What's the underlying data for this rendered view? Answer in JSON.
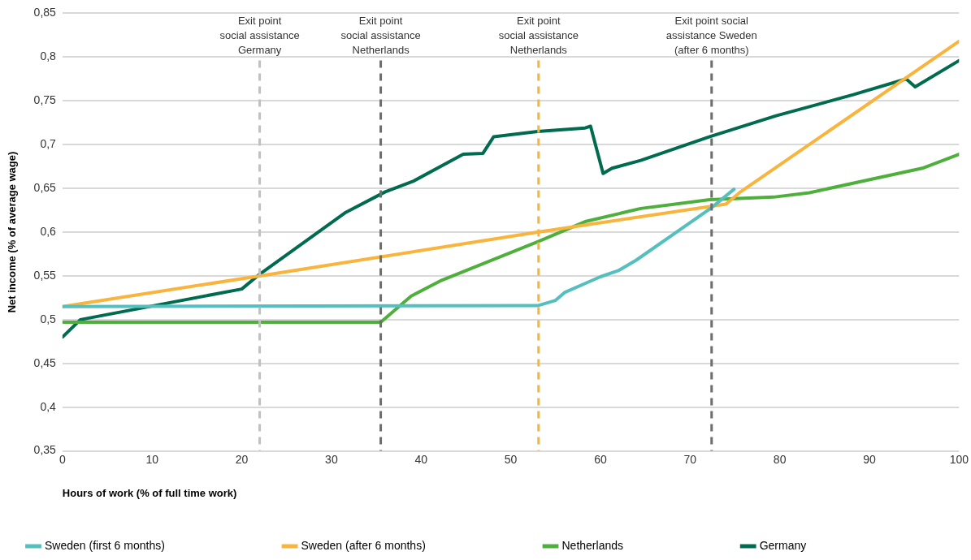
{
  "chart_data": {
    "type": "line",
    "xlabel": "Hours of work (% of full time work)",
    "ylabel": "Net income (% of average wage)",
    "xlim": [
      0,
      100
    ],
    "xticks": [
      0,
      10,
      20,
      30,
      40,
      50,
      60,
      70,
      80,
      90,
      100
    ],
    "ylim": [
      0.35,
      0.85
    ],
    "yticks": [
      {
        "value": 0.35,
        "label": "0,35"
      },
      {
        "value": 0.4,
        "label": "0,4"
      },
      {
        "value": 0.45,
        "label": "0,45"
      },
      {
        "value": 0.5,
        "label": "0,5"
      },
      {
        "value": 0.55,
        "label": "0,55"
      },
      {
        "value": 0.6,
        "label": "0,6"
      },
      {
        "value": 0.65,
        "label": "0,65"
      },
      {
        "value": 0.7,
        "label": "0,7"
      },
      {
        "value": 0.75,
        "label": "0,75"
      },
      {
        "value": 0.8,
        "label": "0,8"
      },
      {
        "value": 0.85,
        "label": "0,85"
      }
    ],
    "grid": "y",
    "legend": "bottom",
    "marker": "none",
    "line_style": "solid",
    "series": [
      {
        "name": "Sweden (first 6 months)",
        "color": "#55bfbf",
        "x": [
          0,
          53,
          55,
          56,
          60,
          62,
          64,
          72.4,
          74.9
        ],
        "values": [
          0.515,
          0.516,
          0.522,
          0.531,
          0.549,
          0.556,
          0.568,
          0.628,
          0.649
        ]
      },
      {
        "name": "Sweden (after 6 months)",
        "color": "#f8b43c",
        "x": [
          0,
          22,
          53,
          74,
          75.5,
          100
        ],
        "values": [
          0.515,
          0.55,
          0.6,
          0.632,
          0.645,
          0.818
        ]
      },
      {
        "name": "Netherlands",
        "color": "#4faf3c",
        "x": [
          0,
          35.5,
          38.9,
          42.3,
          53,
          58.3,
          64.5,
          72.2,
          79.3,
          83.3,
          95.9,
          100
        ],
        "values": [
          0.497,
          0.497,
          0.527,
          0.545,
          0.589,
          0.612,
          0.627,
          0.637,
          0.64,
          0.645,
          0.673,
          0.689
        ]
      },
      {
        "name": "Germany",
        "color": "#006b4f",
        "x": [
          0,
          2,
          20,
          22,
          31.5,
          36,
          39.1,
          44.7,
          46.9,
          48.1,
          53,
          58.3,
          58.9,
          60.3,
          61.3,
          64.5,
          72.2,
          79.6,
          88.2,
          94.1,
          95.1,
          100
        ],
        "values": [
          0.48,
          0.5,
          0.535,
          0.552,
          0.622,
          0.646,
          0.658,
          0.689,
          0.69,
          0.709,
          0.715,
          0.719,
          0.721,
          0.667,
          0.673,
          0.682,
          0.709,
          0.733,
          0.757,
          0.775,
          0.766,
          0.796
        ]
      }
    ],
    "ref_lines": [
      {
        "axis": "x",
        "value": 22,
        "label": "Exit point\nsocial assistance\nGermany",
        "color": "#c0c0c0",
        "line_style": "dashed"
      },
      {
        "axis": "x",
        "value": 35.5,
        "label": "Exit point\nsocial assistance\nNetherlands",
        "color": "#6d6d6d",
        "line_style": "dashed"
      },
      {
        "axis": "x",
        "value": 53.1,
        "label": "Exit point\nsocial assistance\nNetherlands",
        "color": "#f8b43c",
        "line_style": "dashed"
      },
      {
        "axis": "x",
        "value": 72.4,
        "label": "Exit point social\nassistance Sweden\n(after 6 months)",
        "color": "#6d6d6d",
        "line_style": "dashed"
      }
    ]
  }
}
